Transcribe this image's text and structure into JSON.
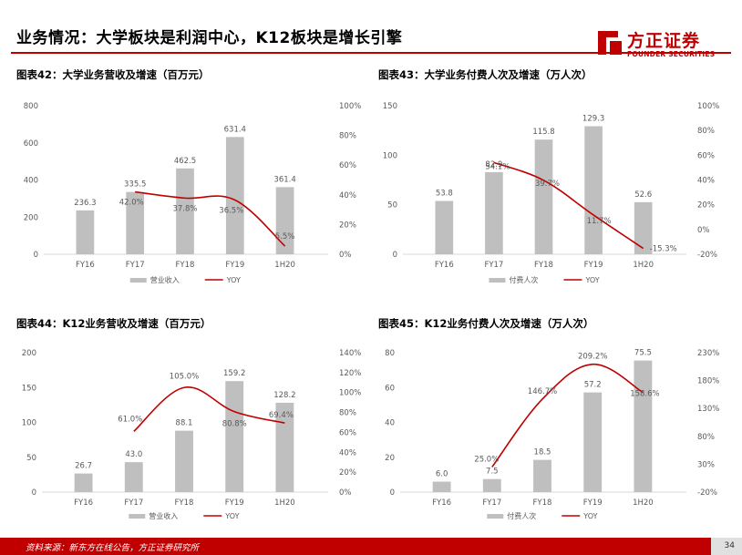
{
  "header": {
    "title": "业务情况：大学板块是利润中心，K12板块是增长引擎",
    "logo_cn": "方正证券",
    "logo_en": "FOUNDER SECURITIES"
  },
  "footer": {
    "source": "资料来源：新东方在线公告，方正证券研究所",
    "page": "34"
  },
  "brand_colors": {
    "red": "#c00000",
    "bar": "#bfbfbf",
    "axis_text": "#595959"
  },
  "chart_data": [
    {
      "id": "c42",
      "type": "bar",
      "title": "图表42：大学业务营收及增速（百万元）",
      "categories": [
        "FY16",
        "FY17",
        "FY18",
        "FY19",
        "1H20"
      ],
      "series": [
        {
          "name": "营业收入",
          "type": "bar",
          "axis": "left",
          "values": [
            236.3,
            335.5,
            462.5,
            631.4,
            361.4
          ],
          "labels": [
            "236.3",
            "335.5",
            "462.5",
            "631.4",
            "361.4"
          ]
        },
        {
          "name": "YOY",
          "type": "line",
          "axis": "right",
          "values": [
            null,
            42.0,
            37.8,
            36.5,
            5.5
          ],
          "labels": [
            "",
            "42.0%",
            "37.8%",
            "36.5%",
            "5.5%"
          ]
        }
      ],
      "y_left": {
        "min": 0,
        "max": 800,
        "ticks": [
          "800",
          "600",
          "400",
          "200",
          "0"
        ]
      },
      "y_right": {
        "min": 0,
        "max": 100,
        "ticks": [
          "100%",
          "80%",
          "60%",
          "40%",
          "20%",
          "0%"
        ]
      },
      "legend": "bottom"
    },
    {
      "id": "c43",
      "type": "bar",
      "title": "图表43：大学业务付费人次及增速（万人次）",
      "categories": [
        "FY16",
        "FY17",
        "FY18",
        "FY19",
        "1H20"
      ],
      "series": [
        {
          "name": "付费人次",
          "type": "bar",
          "axis": "left",
          "values": [
            53.8,
            82.9,
            115.8,
            129.3,
            52.6
          ],
          "labels": [
            "53.8",
            "82.9",
            "115.8",
            "129.3",
            "52.6"
          ]
        },
        {
          "name": "YOY",
          "type": "line",
          "axis": "right",
          "values": [
            null,
            54.1,
            39.7,
            11.7,
            -15.3
          ],
          "labels": [
            "",
            "54.1%",
            "39.7%",
            "11.7%",
            "-15.3%"
          ]
        }
      ],
      "y_left": {
        "min": 0,
        "max": 150,
        "ticks": [
          "150",
          "100",
          "50",
          "0"
        ]
      },
      "y_right": {
        "min": -20,
        "max": 100,
        "ticks": [
          "100%",
          "80%",
          "60%",
          "40%",
          "20%",
          "0%",
          "-20%"
        ]
      },
      "legend": "bottom"
    },
    {
      "id": "c44",
      "type": "bar",
      "title": "图表44：K12业务营收及增速（百万元）",
      "categories": [
        "FY16",
        "FY17",
        "FY18",
        "FY19",
        "1H20"
      ],
      "series": [
        {
          "name": "营业收入",
          "type": "bar",
          "axis": "left",
          "values": [
            26.7,
            43.0,
            88.1,
            159.2,
            128.2
          ],
          "labels": [
            "26.7",
            "43.0",
            "88.1",
            "159.2",
            "128.2"
          ]
        },
        {
          "name": "YOY",
          "type": "line",
          "axis": "right",
          "values": [
            null,
            61.0,
            105.0,
            80.8,
            69.4
          ],
          "labels": [
            "",
            "61.0%",
            "105.0%",
            "80.8%",
            "69.4%"
          ]
        }
      ],
      "y_left": {
        "min": 0,
        "max": 200,
        "ticks": [
          "200",
          "150",
          "100",
          "50",
          "0"
        ]
      },
      "y_right": {
        "min": 0,
        "max": 140,
        "ticks": [
          "140%",
          "120%",
          "100%",
          "80%",
          "60%",
          "40%",
          "20%",
          "0%"
        ]
      },
      "legend": "bottom"
    },
    {
      "id": "c45",
      "type": "bar",
      "title": "图表45：K12业务付费人次及增速（万人次）",
      "categories": [
        "FY16",
        "FY17",
        "FY18",
        "FY19",
        "1H20"
      ],
      "series": [
        {
          "name": "付费人次",
          "type": "bar",
          "axis": "left",
          "values": [
            6.0,
            7.5,
            18.5,
            57.2,
            75.5
          ],
          "labels": [
            "6.0",
            "7.5",
            "18.5",
            "57.2",
            "75.5"
          ]
        },
        {
          "name": "YOY",
          "type": "line",
          "axis": "right",
          "values": [
            null,
            25.0,
            146.7,
            209.2,
            158.6
          ],
          "labels": [
            "",
            "25.0%",
            "146.7%",
            "209.2%",
            "158.6%"
          ]
        }
      ],
      "y_left": {
        "min": 0,
        "max": 80,
        "ticks": [
          "80",
          "60",
          "40",
          "20",
          "0"
        ]
      },
      "y_right": {
        "min": -20,
        "max": 230,
        "ticks": [
          "230%",
          "180%",
          "130%",
          "80%",
          "30%",
          "-20%"
        ]
      },
      "legend": "bottom"
    }
  ]
}
